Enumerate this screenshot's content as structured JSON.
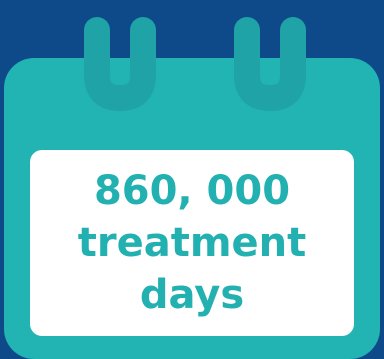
{
  "colors": {
    "background": "#0e4a8a",
    "calendar_teal": "#22b3b3",
    "calendar_ring": "#1fa3a6",
    "panel": "#ffffff",
    "text": "#22b0b0"
  },
  "icon": "calendar-icon",
  "stat": {
    "line1": "860, 000",
    "line2": "treatment",
    "line3": "days"
  }
}
